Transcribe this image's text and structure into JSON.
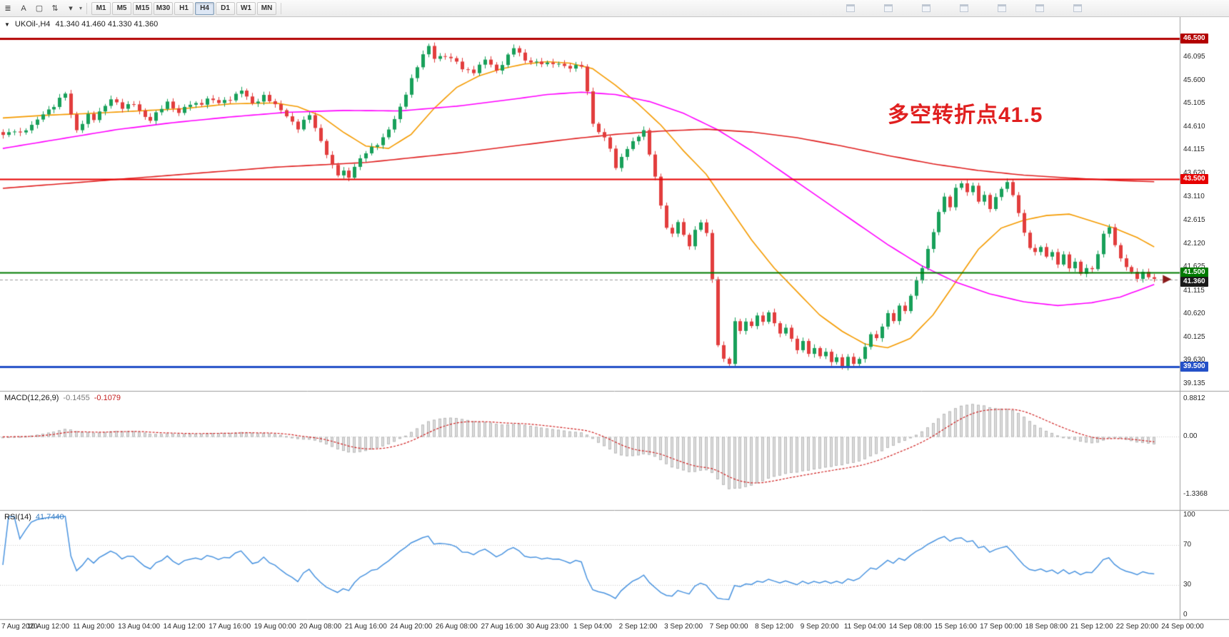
{
  "toolbar": {
    "left_tools": [
      {
        "name": "charts-toolbar-icon",
        "glyph": "≣"
      },
      {
        "name": "cursor-tool",
        "glyph": "A"
      },
      {
        "name": "crosshair-tool-icon",
        "glyph": "▢"
      },
      {
        "name": "timeframe-menu-icon",
        "glyph": "⇅"
      },
      {
        "name": "dropdown-caret-icon",
        "glyph": "▾"
      }
    ],
    "timeframes": [
      "M1",
      "M5",
      "M15",
      "M30",
      "H1",
      "H4",
      "D1",
      "W1",
      "MN"
    ],
    "active_timeframe": "H4",
    "mini_icon_count": 7
  },
  "chart_header": {
    "collapse_glyph": "▼",
    "symbol_label": "UKOil-,H4",
    "ohlc_label": "41.340 41.460 41.330 41.360"
  },
  "annotation": {
    "text": "多空转折点41.5",
    "color": "#e01f1f"
  },
  "indicators": {
    "macd": {
      "label": "MACD(12,26,9)",
      "value_main": "-0.1455",
      "value_signal": "-0.1079",
      "params": {
        "fast": 12,
        "slow": 26,
        "signal": 9
      },
      "axis_ticks": [
        {
          "v": 0.8812,
          "label": "0.8812"
        },
        {
          "v": 0,
          "label": "0.00"
        },
        {
          "v": -1.3368,
          "label": "-1.3368"
        }
      ],
      "range": [
        -1.7,
        1.05
      ]
    },
    "rsi": {
      "label": "RSI(14)",
      "value": "41.7440",
      "params": {
        "period": 14
      },
      "axis_ticks": [
        {
          "v": 100,
          "label": "100"
        },
        {
          "v": 70,
          "label": "70"
        },
        {
          "v": 30,
          "label": "30"
        },
        {
          "v": 0,
          "label": "0"
        }
      ],
      "levels": [
        70,
        30
      ],
      "range": [
        -4,
        104
      ]
    }
  },
  "chart_data": {
    "type": "candlestick",
    "symbol": "UKOil-",
    "timeframe": "H4",
    "bars": 204,
    "slots": 208,
    "price_range": [
      38.98,
      46.95
    ],
    "price_axis_ticks": [
      "46.095",
      "45.600",
      "45.105",
      "44.610",
      "44.115",
      "43.620",
      "43.110",
      "42.615",
      "42.120",
      "41.625",
      "41.115",
      "40.620",
      "40.125",
      "39.630",
      "39.135"
    ],
    "time_labels": [
      "7 Aug 2020",
      "10 Aug 12:00",
      "11 Aug 20:00",
      "13 Aug 04:00",
      "14 Aug 12:00",
      "17 Aug 16:00",
      "19 Aug 00:00",
      "20 Aug 08:00",
      "21 Aug 16:00",
      "24 Aug 20:00",
      "26 Aug 08:00",
      "27 Aug 16:00",
      "30 Aug 23:00",
      "1 Sep 04:00",
      "2 Sep 12:00",
      "3 Sep 20:00",
      "7 Sep 00:00",
      "8 Sep 12:00",
      "9 Sep 20:00",
      "11 Sep 04:00",
      "14 Sep 08:00",
      "15 Sep 16:00",
      "17 Sep 00:00",
      "18 Sep 08:00",
      "21 Sep 12:00",
      "22 Sep 20:00",
      "24 Sep 00:00"
    ],
    "hlines": [
      {
        "price": 46.5,
        "label": "46.500",
        "color": "#b30000",
        "width": 3
      },
      {
        "price": 43.5,
        "label": "43.500",
        "color": "#e60000",
        "width": 2
      },
      {
        "price": 41.5,
        "label": "41.500",
        "color": "#007a00",
        "width": 2
      },
      {
        "price": 39.5,
        "label": "39.500",
        "color": "#2451c8",
        "width": 3
      }
    ],
    "current_price": {
      "value": 41.36,
      "label": "41.360",
      "tag_color": "#1a1a1a"
    },
    "last_close_marker": {
      "shape": "arrow-right",
      "price": 41.36,
      "color": "#8b1a1a"
    },
    "candle_colors": {
      "up": "#18a05a",
      "down": "#e23d3d"
    },
    "macd_style": {
      "hist_fill": "#dcdcdc",
      "hist_stroke": "#b4b4b4",
      "signal_color": "#d02020"
    },
    "rsi_style": {
      "line_color": "#4a94e0"
    },
    "close_keyframes": [
      [
        0,
        44.42
      ],
      [
        2,
        44.55
      ],
      [
        3,
        44.48
      ],
      [
        5,
        44.62
      ],
      [
        7,
        44.9
      ],
      [
        9,
        45.06
      ],
      [
        11,
        45.32
      ],
      [
        12,
        44.88
      ],
      [
        13,
        44.55
      ],
      [
        15,
        44.85
      ],
      [
        16,
        44.76
      ],
      [
        18,
        45.08
      ],
      [
        19,
        45.22
      ],
      [
        21,
        45.0
      ],
      [
        23,
        45.12
      ],
      [
        25,
        44.82
      ],
      [
        26,
        44.74
      ],
      [
        28,
        45.02
      ],
      [
        29,
        45.15
      ],
      [
        31,
        44.9
      ],
      [
        33,
        45.1
      ],
      [
        35,
        45.12
      ],
      [
        36,
        45.2
      ],
      [
        38,
        45.12
      ],
      [
        40,
        45.22
      ],
      [
        42,
        45.38
      ],
      [
        44,
        45.1
      ],
      [
        46,
        45.28
      ],
      [
        48,
        45.06
      ],
      [
        50,
        44.86
      ],
      [
        52,
        44.58
      ],
      [
        54,
        44.86
      ],
      [
        56,
        44.32
      ],
      [
        58,
        43.76
      ],
      [
        59,
        43.58
      ],
      [
        60,
        43.66
      ],
      [
        61,
        43.55
      ],
      [
        62,
        43.78
      ],
      [
        64,
        44.05
      ],
      [
        66,
        44.25
      ],
      [
        68,
        44.55
      ],
      [
        70,
        45.0
      ],
      [
        72,
        45.65
      ],
      [
        74,
        46.15
      ],
      [
        75,
        46.3
      ],
      [
        76,
        46.08
      ],
      [
        78,
        46.14
      ],
      [
        80,
        45.98
      ],
      [
        81,
        45.84
      ],
      [
        83,
        45.8
      ],
      [
        85,
        46.04
      ],
      [
        87,
        45.8
      ],
      [
        89,
        46.14
      ],
      [
        90,
        46.3
      ],
      [
        92,
        46.02
      ],
      [
        94,
        46.0
      ],
      [
        96,
        45.94
      ],
      [
        98,
        45.96
      ],
      [
        100,
        45.88
      ],
      [
        102,
        45.9
      ],
      [
        103,
        45.35
      ],
      [
        104,
        44.7
      ],
      [
        105,
        44.52
      ],
      [
        106,
        44.36
      ],
      [
        107,
        44.15
      ],
      [
        108,
        43.7
      ],
      [
        109,
        44.0
      ],
      [
        111,
        44.3
      ],
      [
        113,
        44.5
      ],
      [
        114,
        44.05
      ],
      [
        115,
        43.55
      ],
      [
        116,
        42.95
      ],
      [
        117,
        42.45
      ],
      [
        118,
        42.3
      ],
      [
        119,
        42.6
      ],
      [
        120,
        42.3
      ],
      [
        121,
        42.1
      ],
      [
        122,
        42.4
      ],
      [
        123,
        42.55
      ],
      [
        124,
        42.35
      ],
      [
        125,
        41.35
      ],
      [
        126,
        40.0
      ],
      [
        127,
        39.65
      ],
      [
        128,
        39.55
      ],
      [
        129,
        40.45
      ],
      [
        130,
        40.25
      ],
      [
        131,
        40.5
      ],
      [
        132,
        40.35
      ],
      [
        133,
        40.6
      ],
      [
        134,
        40.42
      ],
      [
        135,
        40.65
      ],
      [
        136,
        40.45
      ],
      [
        137,
        40.2
      ],
      [
        138,
        40.35
      ],
      [
        139,
        40.05
      ],
      [
        140,
        39.85
      ],
      [
        141,
        40.05
      ],
      [
        142,
        39.78
      ],
      [
        143,
        39.92
      ],
      [
        144,
        39.68
      ],
      [
        145,
        39.82
      ],
      [
        146,
        39.58
      ],
      [
        147,
        39.72
      ],
      [
        148,
        39.52
      ],
      [
        149,
        39.68
      ],
      [
        150,
        39.56
      ],
      [
        151,
        39.63
      ],
      [
        152,
        39.95
      ],
      [
        153,
        40.2
      ],
      [
        154,
        40.1
      ],
      [
        155,
        40.35
      ],
      [
        156,
        40.6
      ],
      [
        157,
        40.5
      ],
      [
        158,
        40.8
      ],
      [
        159,
        40.7
      ],
      [
        160,
        41.0
      ],
      [
        161,
        41.3
      ],
      [
        162,
        41.62
      ],
      [
        163,
        42.0
      ],
      [
        164,
        42.4
      ],
      [
        165,
        42.78
      ],
      [
        166,
        43.1
      ],
      [
        167,
        42.9
      ],
      [
        168,
        43.3
      ],
      [
        169,
        43.45
      ],
      [
        170,
        43.2
      ],
      [
        171,
        43.35
      ],
      [
        172,
        43.0
      ],
      [
        173,
        43.15
      ],
      [
        174,
        42.9
      ],
      [
        175,
        43.1
      ],
      [
        176,
        43.3
      ],
      [
        177,
        43.4
      ],
      [
        178,
        43.15
      ],
      [
        179,
        42.8
      ],
      [
        180,
        42.35
      ],
      [
        181,
        42.05
      ],
      [
        182,
        41.9
      ],
      [
        183,
        42.05
      ],
      [
        184,
        41.85
      ],
      [
        185,
        41.95
      ],
      [
        186,
        41.7
      ],
      [
        187,
        41.85
      ],
      [
        188,
        41.6
      ],
      [
        189,
        41.72
      ],
      [
        190,
        41.5
      ],
      [
        191,
        41.62
      ],
      [
        192,
        41.55
      ],
      [
        193,
        41.9
      ],
      [
        194,
        42.3
      ],
      [
        195,
        42.5
      ],
      [
        196,
        42.1
      ],
      [
        197,
        41.8
      ],
      [
        198,
        41.62
      ],
      [
        199,
        41.48
      ],
      [
        200,
        41.4
      ],
      [
        201,
        41.52
      ],
      [
        202,
        41.42
      ],
      [
        203,
        41.36
      ]
    ],
    "ma_series": [
      {
        "name": "MA-fast",
        "color": "#f59b00",
        "keyframes": [
          [
            0,
            44.8
          ],
          [
            8,
            44.86
          ],
          [
            16,
            44.9
          ],
          [
            24,
            44.95
          ],
          [
            32,
            45.0
          ],
          [
            40,
            45.1
          ],
          [
            48,
            45.12
          ],
          [
            52,
            45.04
          ],
          [
            56,
            44.85
          ],
          [
            60,
            44.5
          ],
          [
            64,
            44.2
          ],
          [
            68,
            44.15
          ],
          [
            72,
            44.45
          ],
          [
            76,
            45.0
          ],
          [
            80,
            45.45
          ],
          [
            84,
            45.7
          ],
          [
            88,
            45.85
          ],
          [
            92,
            45.95
          ],
          [
            96,
            46.0
          ],
          [
            100,
            45.97
          ],
          [
            104,
            45.85
          ],
          [
            108,
            45.5
          ],
          [
            112,
            45.1
          ],
          [
            116,
            44.65
          ],
          [
            120,
            44.1
          ],
          [
            124,
            43.6
          ],
          [
            128,
            42.9
          ],
          [
            132,
            42.2
          ],
          [
            136,
            41.6
          ],
          [
            140,
            41.1
          ],
          [
            144,
            40.6
          ],
          [
            148,
            40.25
          ],
          [
            152,
            39.98
          ],
          [
            156,
            39.9
          ],
          [
            160,
            40.1
          ],
          [
            164,
            40.6
          ],
          [
            168,
            41.3
          ],
          [
            172,
            42.0
          ],
          [
            176,
            42.45
          ],
          [
            180,
            42.62
          ],
          [
            184,
            42.72
          ],
          [
            188,
            42.75
          ],
          [
            192,
            42.6
          ],
          [
            196,
            42.45
          ],
          [
            200,
            42.25
          ],
          [
            203,
            42.05
          ]
        ]
      },
      {
        "name": "MA-mid",
        "color": "#ff00ff",
        "keyframes": [
          [
            0,
            44.15
          ],
          [
            10,
            44.35
          ],
          [
            20,
            44.55
          ],
          [
            30,
            44.7
          ],
          [
            40,
            44.82
          ],
          [
            50,
            44.92
          ],
          [
            60,
            44.96
          ],
          [
            70,
            44.95
          ],
          [
            80,
            45.05
          ],
          [
            90,
            45.2
          ],
          [
            96,
            45.3
          ],
          [
            102,
            45.35
          ],
          [
            108,
            45.3
          ],
          [
            114,
            45.15
          ],
          [
            120,
            44.9
          ],
          [
            126,
            44.55
          ],
          [
            132,
            44.1
          ],
          [
            138,
            43.6
          ],
          [
            144,
            43.1
          ],
          [
            150,
            42.6
          ],
          [
            156,
            42.1
          ],
          [
            162,
            41.65
          ],
          [
            168,
            41.3
          ],
          [
            174,
            41.05
          ],
          [
            180,
            40.88
          ],
          [
            186,
            40.8
          ],
          [
            192,
            40.86
          ],
          [
            197,
            40.98
          ],
          [
            203,
            41.25
          ]
        ]
      },
      {
        "name": "MA-slow",
        "color": "#e02020",
        "keyframes": [
          [
            0,
            43.3
          ],
          [
            16,
            43.45
          ],
          [
            32,
            43.6
          ],
          [
            48,
            43.75
          ],
          [
            64,
            43.85
          ],
          [
            80,
            44.05
          ],
          [
            90,
            44.2
          ],
          [
            100,
            44.35
          ],
          [
            108,
            44.45
          ],
          [
            116,
            44.52
          ],
          [
            124,
            44.56
          ],
          [
            132,
            44.5
          ],
          [
            140,
            44.38
          ],
          [
            148,
            44.2
          ],
          [
            156,
            44.0
          ],
          [
            164,
            43.82
          ],
          [
            172,
            43.68
          ],
          [
            180,
            43.58
          ],
          [
            188,
            43.52
          ],
          [
            196,
            43.47
          ],
          [
            203,
            43.44
          ]
        ]
      }
    ]
  }
}
